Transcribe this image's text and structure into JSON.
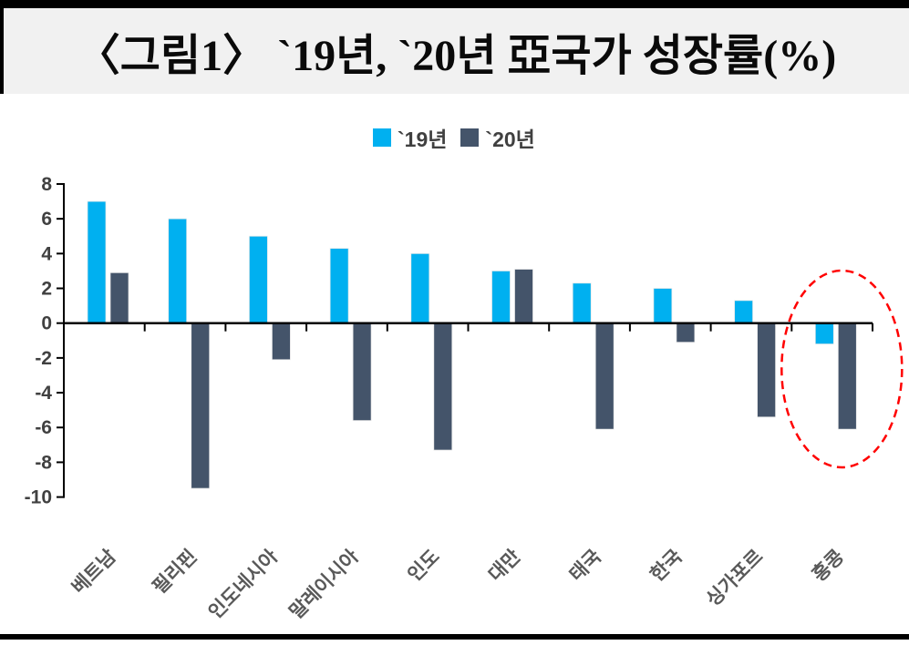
{
  "title": "〈그림1〉 `19년, `20년 亞국가 성장률(%)",
  "legend": {
    "series1_label": "`19년",
    "series2_label": "`20년"
  },
  "chart_data": {
    "type": "bar",
    "title": "〈그림1〉 `19년, `20년 亞국가 성장률(%)",
    "categories": [
      "베트남",
      "필리핀",
      "인도네시아",
      "말레이시아",
      "인도",
      "대만",
      "태국",
      "한국",
      "싱가포르",
      "홍콩"
    ],
    "series": [
      {
        "name": "`19년",
        "color": "#00B0F0",
        "values": [
          7.0,
          6.0,
          5.0,
          4.3,
          4.0,
          3.0,
          2.3,
          2.0,
          1.3,
          -1.2
        ]
      },
      {
        "name": "`20년",
        "color": "#44546A",
        "values": [
          2.9,
          -9.5,
          -2.1,
          -5.6,
          -7.3,
          3.1,
          -6.1,
          -1.1,
          -5.4,
          -6.1
        ]
      }
    ],
    "xlabel": "",
    "ylabel": "",
    "ylim": [
      -10,
      8
    ],
    "ytick_step": 2,
    "ytick_labels": [
      "8",
      "6",
      "4",
      "2",
      "0",
      "-2",
      "-4",
      "-6",
      "-8",
      "-10"
    ],
    "grid": false,
    "legend_position": "top-center",
    "annotation": {
      "shape": "dashed-ellipse",
      "target_category": "홍콩",
      "color": "#FF0000"
    }
  },
  "colors": {
    "series1": "#00B0F0",
    "series2": "#44546A",
    "axis": "#000000",
    "tick_label": "#404040",
    "category_label": "#595959",
    "title_background": "#f1f1f1",
    "annotation_red": "#FF0000"
  }
}
